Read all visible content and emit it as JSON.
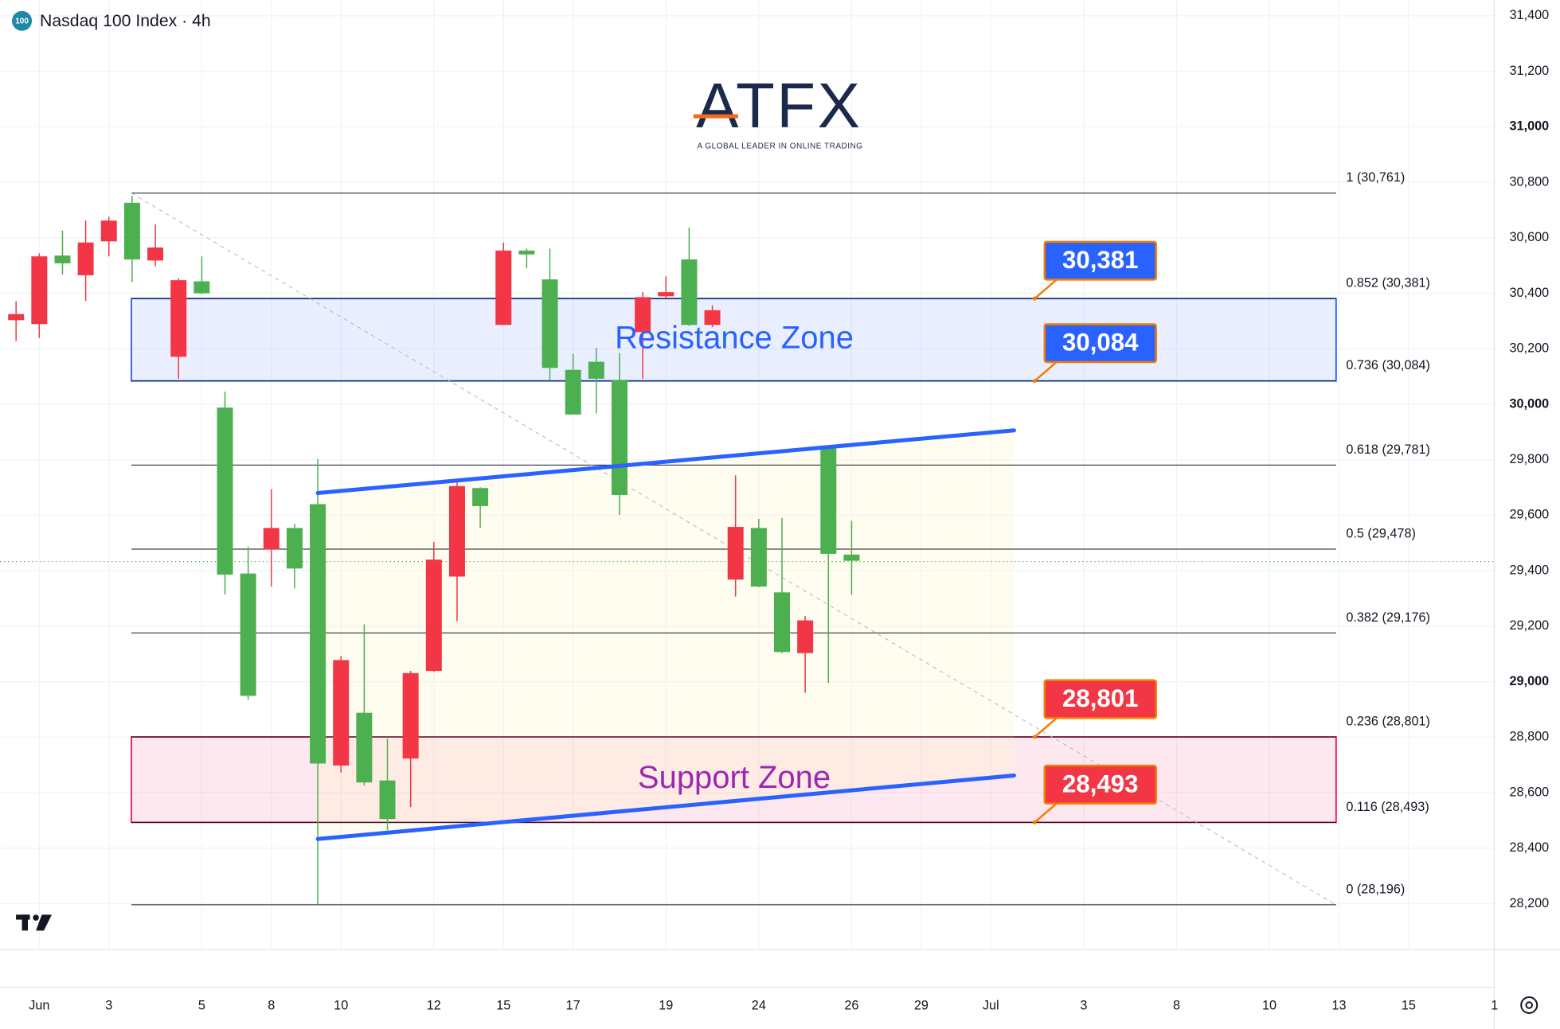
{
  "header": {
    "badge": "100",
    "title": "Nasdaq 100 Index · 4h"
  },
  "logo": {
    "brand": "ATFX",
    "tagline": "A GLOBAL LEADER IN ONLINE TRADING"
  },
  "chart_data": {
    "type": "candlestick",
    "up_color": "#4caf50",
    "down_color": "#f23645",
    "candles": [
      {
        "open": 30325,
        "high": 30372,
        "low": 30228,
        "close": 30303
      },
      {
        "open": 30533,
        "high": 30544,
        "low": 30239,
        "close": 30289
      },
      {
        "open": 30508,
        "high": 30626,
        "low": 30468,
        "close": 30536
      },
      {
        "open": 30583,
        "high": 30662,
        "low": 30372,
        "close": 30465
      },
      {
        "open": 30662,
        "high": 30676,
        "low": 30533,
        "close": 30587
      },
      {
        "open": 30522,
        "high": 30751,
        "low": 30440,
        "close": 30726
      },
      {
        "open": 30565,
        "high": 30648,
        "low": 30497,
        "close": 30518
      },
      {
        "open": 30447,
        "high": 30454,
        "low": 30092,
        "close": 30171
      },
      {
        "open": 30400,
        "high": 30533,
        "low": 30397,
        "close": 30443
      },
      {
        "open": 29386,
        "high": 30045,
        "low": 29314,
        "close": 29988
      },
      {
        "open": 28949,
        "high": 29486,
        "low": 28935,
        "close": 29390
      },
      {
        "open": 29554,
        "high": 29694,
        "low": 29343,
        "close": 29476
      },
      {
        "open": 29408,
        "high": 29569,
        "low": 29336,
        "close": 29554
      },
      {
        "open": 28705,
        "high": 29802,
        "low": 28196,
        "close": 29640
      },
      {
        "open": 29078,
        "high": 29092,
        "low": 28673,
        "close": 28698
      },
      {
        "open": 28637,
        "high": 29207,
        "low": 28626,
        "close": 28888
      },
      {
        "open": 28505,
        "high": 28795,
        "low": 28465,
        "close": 28644
      },
      {
        "open": 29031,
        "high": 29039,
        "low": 28548,
        "close": 28723
      },
      {
        "open": 29440,
        "high": 29504,
        "low": 29035,
        "close": 29039
      },
      {
        "open": 29705,
        "high": 29727,
        "low": 29218,
        "close": 29379
      },
      {
        "open": 29633,
        "high": 29701,
        "low": 29554,
        "close": 29698
      },
      {
        "open": 30554,
        "high": 30583,
        "low": 30286,
        "close": 30286
      },
      {
        "open": 30540,
        "high": 30561,
        "low": 30490,
        "close": 30554
      },
      {
        "open": 30131,
        "high": 30561,
        "low": 30085,
        "close": 30450
      },
      {
        "open": 29963,
        "high": 30182,
        "low": 29963,
        "close": 30124
      },
      {
        "open": 30092,
        "high": 30203,
        "low": 29967,
        "close": 30153
      },
      {
        "open": 29673,
        "high": 30185,
        "low": 29601,
        "close": 30088
      },
      {
        "open": 30386,
        "high": 30404,
        "low": 30092,
        "close": 30260
      },
      {
        "open": 30404,
        "high": 30461,
        "low": 30382,
        "close": 30389
      },
      {
        "open": 30286,
        "high": 30637,
        "low": 30282,
        "close": 30522
      },
      {
        "open": 30339,
        "high": 30357,
        "low": 30278,
        "close": 30286
      },
      {
        "open": 29558,
        "high": 29744,
        "low": 29307,
        "close": 29368
      },
      {
        "open": 29343,
        "high": 29587,
        "low": 29340,
        "close": 29554
      },
      {
        "open": 29107,
        "high": 29590,
        "low": 29103,
        "close": 29322
      },
      {
        "open": 29221,
        "high": 29236,
        "low": 28960,
        "close": 29103
      },
      {
        "open": 29461,
        "high": 29845,
        "low": 28996,
        "close": 29841
      },
      {
        "open": 29436,
        "high": 29580,
        "low": 29314,
        "close": 29458
      }
    ],
    "xlim": [
      -0.69,
      63.69
    ],
    "xticks": [
      {
        "value": 1,
        "label": "Jun"
      },
      {
        "value": 4,
        "label": "3"
      },
      {
        "value": 8,
        "label": "5"
      },
      {
        "value": 11,
        "label": "8"
      },
      {
        "value": 14,
        "label": "10"
      },
      {
        "value": 18,
        "label": "12"
      },
      {
        "value": 21,
        "label": "15"
      },
      {
        "value": 24,
        "label": "17"
      },
      {
        "value": 28,
        "label": "19"
      },
      {
        "value": 32,
        "label": "24"
      },
      {
        "value": 36,
        "label": "26"
      },
      {
        "value": 39,
        "label": "29"
      },
      {
        "value": 42,
        "label": "Jul"
      },
      {
        "value": 46,
        "label": "3"
      },
      {
        "value": 50,
        "label": "8"
      },
      {
        "value": 54,
        "label": "10"
      },
      {
        "value": 57,
        "label": "13"
      },
      {
        "value": 60,
        "label": "15"
      },
      {
        "value": 63.7,
        "label": "1"
      }
    ],
    "ylim": [
      28035,
      31457
    ],
    "yticks": [
      {
        "value": 28200,
        "label": "28,200"
      },
      {
        "value": 28400,
        "label": "28,400"
      },
      {
        "value": 28600,
        "label": "28,600"
      },
      {
        "value": 28800,
        "label": "28,800"
      },
      {
        "value": 29000,
        "label": "29,000"
      },
      {
        "value": 29200,
        "label": "29,200"
      },
      {
        "value": 29400,
        "label": "29,400"
      },
      {
        "value": 29600,
        "label": "29,600"
      },
      {
        "value": 29800,
        "label": "29,800"
      },
      {
        "value": 30000,
        "label": "30,000"
      },
      {
        "value": 30200,
        "label": "30,200"
      },
      {
        "value": 30400,
        "label": "30,400"
      },
      {
        "value": 30600,
        "label": "30,600"
      },
      {
        "value": 30800,
        "label": "30,800"
      },
      {
        "value": 31000,
        "label": "31,000"
      },
      {
        "value": 31200,
        "label": "31,200"
      },
      {
        "value": 31400,
        "label": "31,400"
      }
    ],
    "grid": true,
    "fib_levels": [
      {
        "value": 30761,
        "label": "1 (30,761)"
      },
      {
        "value": 30381,
        "label": "0.852 (30,381)"
      },
      {
        "value": 30084,
        "label": "0.736 (30,084)"
      },
      {
        "value": 29781,
        "label": "0.618 (29,781)"
      },
      {
        "value": 29478,
        "label": "0.5 (29,478)"
      },
      {
        "value": 29176,
        "label": "0.382 (29,176)"
      },
      {
        "value": 28801,
        "label": "0.236 (28,801)"
      },
      {
        "value": 28493,
        "label": "0.116 (28,493)"
      },
      {
        "value": 28196,
        "label": "0 (28,196)"
      }
    ],
    "zones": [
      {
        "label": "Resistance Zone",
        "from": 30084,
        "to": 30381,
        "color": "#2962ff",
        "text_color": "#2962ff"
      },
      {
        "label": "Support Zone",
        "from": 28493,
        "to": 28801,
        "color": "#e91e63",
        "text_color": "#9c27b0"
      }
    ],
    "callouts": [
      {
        "value": 30381,
        "label": "30,381",
        "color": "#2962ff"
      },
      {
        "value": 30084,
        "label": "30,084",
        "color": "#2962ff"
      },
      {
        "value": 28801,
        "label": "28,801",
        "color": "#f23645"
      },
      {
        "value": 28493,
        "label": "28,493",
        "color": "#f23645"
      }
    ],
    "trendlines": [
      {
        "from": [
          13,
          29680
        ],
        "to": [
          43,
          29906
        ],
        "color": "#2962ff"
      },
      {
        "from": [
          13,
          28433
        ],
        "to": [
          43,
          28662
        ],
        "color": "#2962ff"
      }
    ],
    "price_line": 29433
  }
}
